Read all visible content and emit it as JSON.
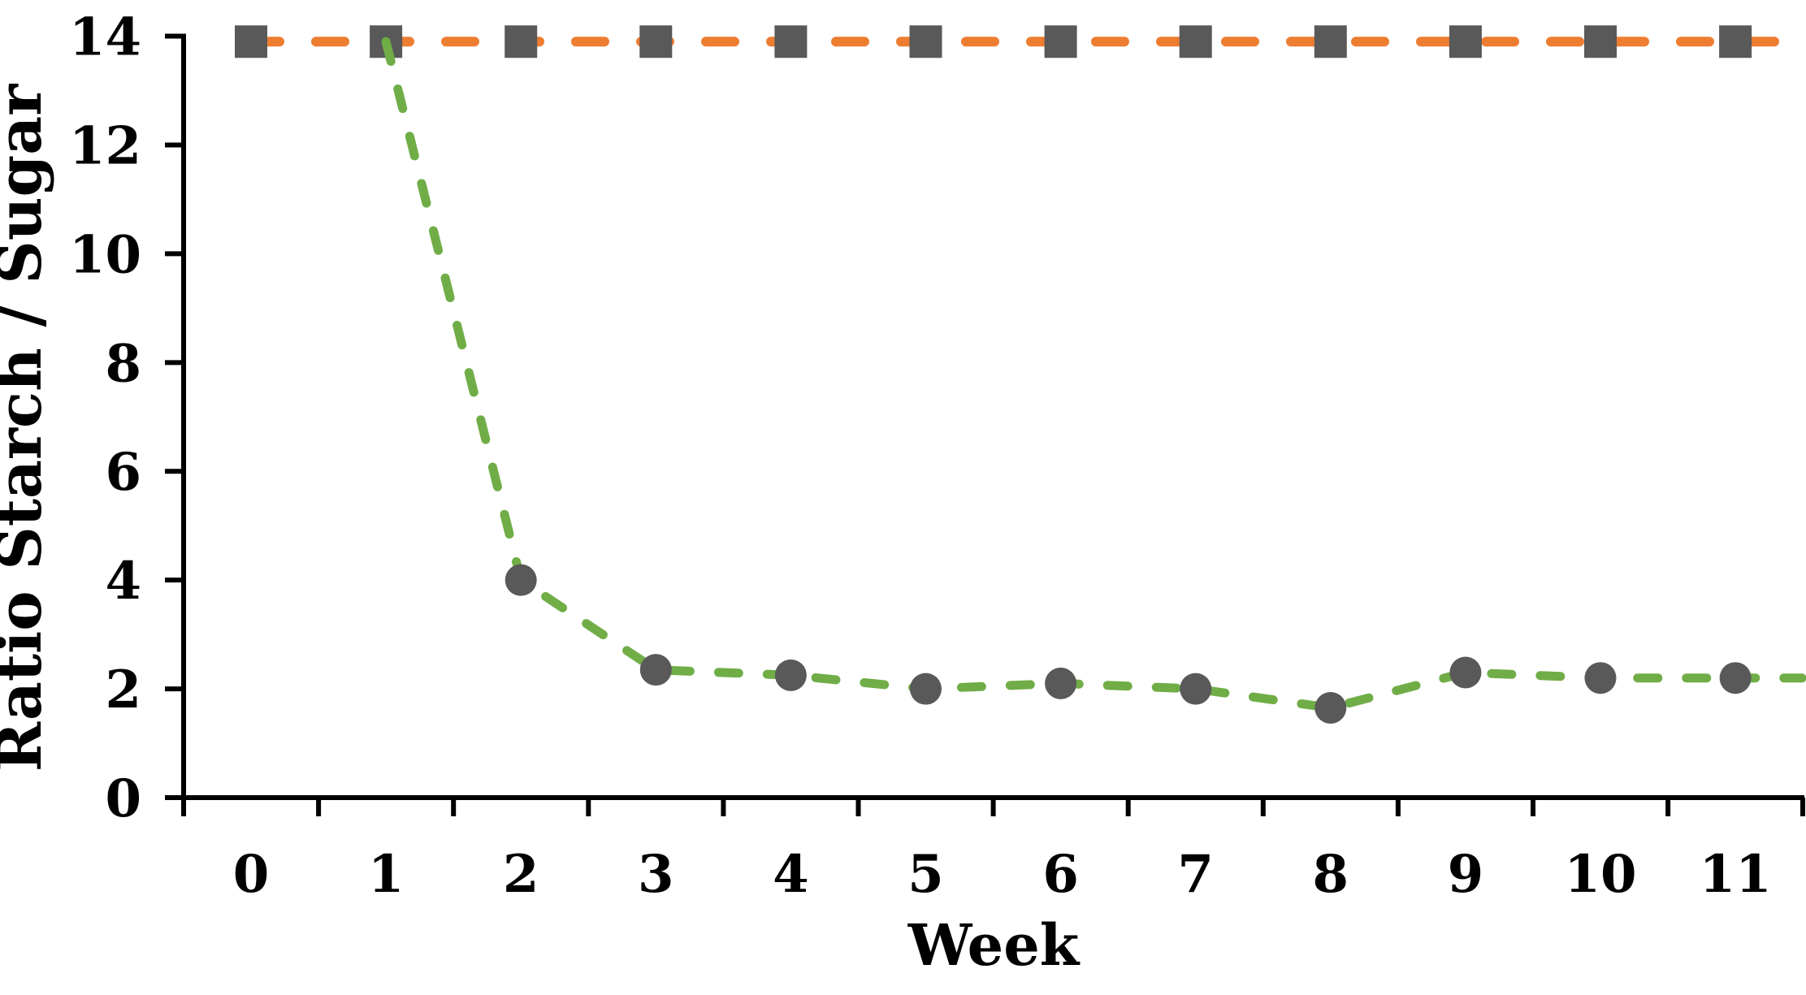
{
  "figure": {
    "background": "#ffffff",
    "axis_color": "#000000",
    "text_color": "#000000"
  },
  "chart_data": {
    "type": "line",
    "title": "",
    "xlabel": "Week",
    "ylabel": "Ratio Starch / Sugar",
    "x": [
      0,
      1,
      2,
      3,
      4,
      5,
      6,
      7,
      8,
      9,
      10,
      11
    ],
    "x_tick_labels": [
      "0",
      "1",
      "2",
      "3",
      "4",
      "5",
      "6",
      "7",
      "8",
      "9",
      "10",
      "11"
    ],
    "y_ticks": [
      0,
      2,
      4,
      6,
      8,
      10,
      12,
      14
    ],
    "ylim": [
      0,
      14
    ],
    "grid": false,
    "legend": "none",
    "series": [
      {
        "id": "orange-dashed-squares",
        "line_color": "#ED7D31",
        "line_style": "dashed",
        "marker": "square",
        "marker_color": "#595959",
        "values": [
          13.9,
          13.9,
          13.9,
          13.9,
          13.9,
          13.9,
          13.9,
          13.9,
          13.9,
          13.9,
          13.9,
          13.9
        ]
      },
      {
        "id": "green-dashed-circles",
        "line_color": "#70AD47",
        "line_style": "dashed",
        "marker": "circle",
        "marker_color": "#595959",
        "values": [
          null,
          13.9,
          4.0,
          2.35,
          2.25,
          2.0,
          2.1,
          2.0,
          1.65,
          2.3,
          2.2,
          2.2
        ]
      }
    ]
  }
}
